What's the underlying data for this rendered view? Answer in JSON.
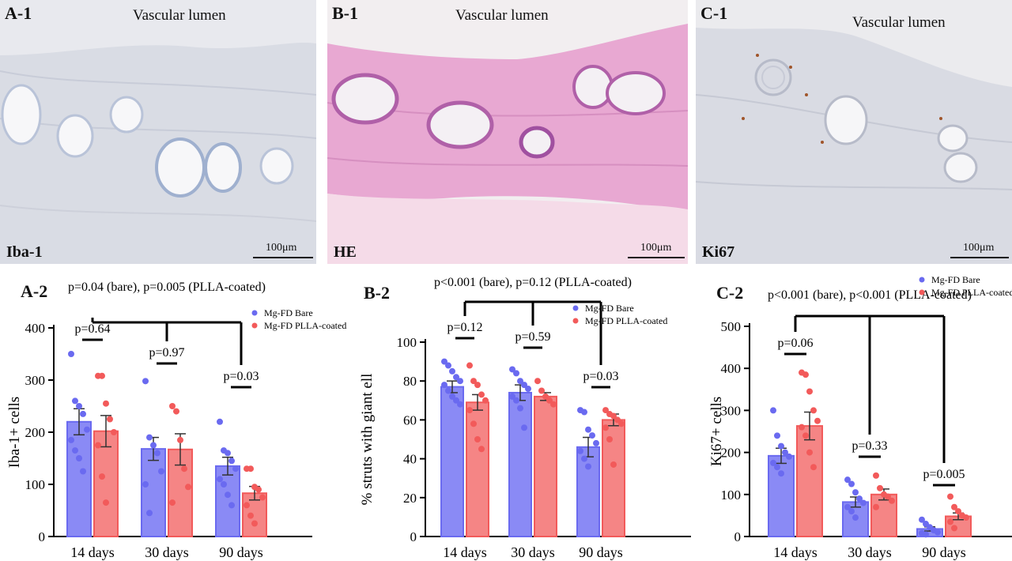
{
  "panels": [
    {
      "id": "A-1",
      "lumen": "Vascular lumen",
      "stain": "Iba-1",
      "scale": "100μm"
    },
    {
      "id": "B-1",
      "lumen": "Vascular lumen",
      "stain": "HE",
      "scale": "100μm"
    },
    {
      "id": "C-1",
      "lumen": "Vascular lumen",
      "stain": "Ki67",
      "scale": "100μm"
    }
  ],
  "colors": {
    "bare": "#6a6af0",
    "bare_fill": "#8a8af5",
    "coated": "#f25a5a",
    "coated_fill": "#f58585",
    "tissue_ihc": "#dcdfe6",
    "tissue_he": "#e6a6d0",
    "bg": "#ececec"
  },
  "chart_data": [
    {
      "id": "A-2",
      "type": "bar",
      "categories": [
        "14 days",
        "30 days",
        "90 days"
      ],
      "ylabel": "Iba-1+ cells",
      "ylim": [
        0,
        400
      ],
      "yticks": [
        0,
        100,
        200,
        300,
        400
      ],
      "legend": [
        "Mg-FD Bare",
        "Mg-FD PLLA-coated"
      ],
      "series": [
        {
          "name": "Mg-FD Bare",
          "values": [
            220,
            168,
            135
          ],
          "err": [
            25,
            22,
            17
          ],
          "points": [
            [
              350,
              260,
              250,
              235,
              205,
              185,
              165,
              150,
              125
            ],
            [
              298,
              190,
              175,
              160,
              125,
              100,
              45
            ],
            [
              220,
              165,
              160,
              145,
              130,
              110,
              100,
              80,
              60
            ]
          ]
        },
        {
          "name": "Mg-FD PLLA-coated",
          "values": [
            202,
            167,
            83
          ],
          "err": [
            30,
            30,
            13
          ],
          "points": [
            [
              308,
              308,
              255,
              225,
              200,
              175,
              115,
              65
            ],
            [
              250,
              240,
              185,
              130,
              95,
              65
            ],
            [
              130,
              130,
              95,
              90,
              75,
              60,
              40,
              25
            ]
          ]
        }
      ],
      "top_annotation": "p=0.04 (bare), p=0.005 (PLLA-coated)",
      "pair_annotations": [
        "p=0.64",
        "p=0.97",
        "p=0.03"
      ]
    },
    {
      "id": "B-2",
      "type": "bar",
      "categories": [
        "14 days",
        "30 days",
        "90 days"
      ],
      "ylabel": "% struts with giant ell",
      "ylim": [
        0,
        100
      ],
      "yticks": [
        0,
        20,
        40,
        60,
        80,
        100
      ],
      "legend": [
        "Mg-FD Bare",
        "Mg-FD PLLA-coated"
      ],
      "series": [
        {
          "name": "Mg-FD Bare",
          "values": [
            77,
            74,
            46
          ],
          "err": [
            3,
            4,
            5
          ],
          "points": [
            [
              90,
              88,
              85,
              82,
              80,
              78,
              75,
              72,
              70,
              68
            ],
            [
              86,
              84,
              80,
              78,
              76,
              72,
              70,
              66,
              56
            ],
            [
              65,
              64,
              55,
              52,
              48,
              44,
              40,
              36
            ]
          ]
        },
        {
          "name": "Mg-FD PLLA-coated",
          "values": [
            69,
            72,
            60
          ],
          "err": [
            4,
            2,
            3
          ],
          "points": [
            [
              88,
              80,
              78,
              73,
              70,
              65,
              58,
              50,
              45
            ],
            [
              80,
              75,
              72,
              70,
              68
            ],
            [
              65,
              63,
              62,
              60,
              58,
              56,
              50,
              37
            ]
          ]
        }
      ],
      "top_annotation": "p<0.001 (bare), p=0.12 (PLLA-coated)",
      "pair_annotations": [
        "p=0.12",
        "p=0.59",
        "p=0.03"
      ]
    },
    {
      "id": "C-2",
      "type": "bar",
      "categories": [
        "14 days",
        "30 days",
        "90 days"
      ],
      "ylabel": "Ki67+ cells",
      "ylim": [
        0,
        500
      ],
      "yticks": [
        0,
        100,
        200,
        300,
        400,
        500
      ],
      "legend": [
        "Mg-FD Bare",
        "Mg-FD PLLA-coated"
      ],
      "series": [
        {
          "name": "Mg-FD Bare",
          "values": [
            192,
            82,
            18
          ],
          "err": [
            18,
            12,
            5
          ],
          "points": [
            [
              300,
              240,
              215,
              200,
              190,
              175,
              165,
              150
            ],
            [
              135,
              125,
              105,
              90,
              80,
              70,
              60,
              45
            ],
            [
              40,
              30,
              22,
              15,
              10,
              8,
              5
            ]
          ]
        },
        {
          "name": "Mg-FD PLLA-coated",
          "values": [
            263,
            100,
            48
          ],
          "err": [
            33,
            13,
            8
          ],
          "points": [
            [
              390,
              385,
              345,
              300,
              275,
              260,
              240,
              200,
              165
            ],
            [
              145,
              115,
              100,
              95,
              85,
              70
            ],
            [
              95,
              70,
              60,
              50,
              45,
              35,
              20
            ]
          ]
        }
      ],
      "top_annotation": "p<0.001 (bare), p<0.001 (PLLA-coated)",
      "pair_annotations": [
        "p=0.06",
        "p=0.33",
        "p=0.005"
      ]
    }
  ]
}
